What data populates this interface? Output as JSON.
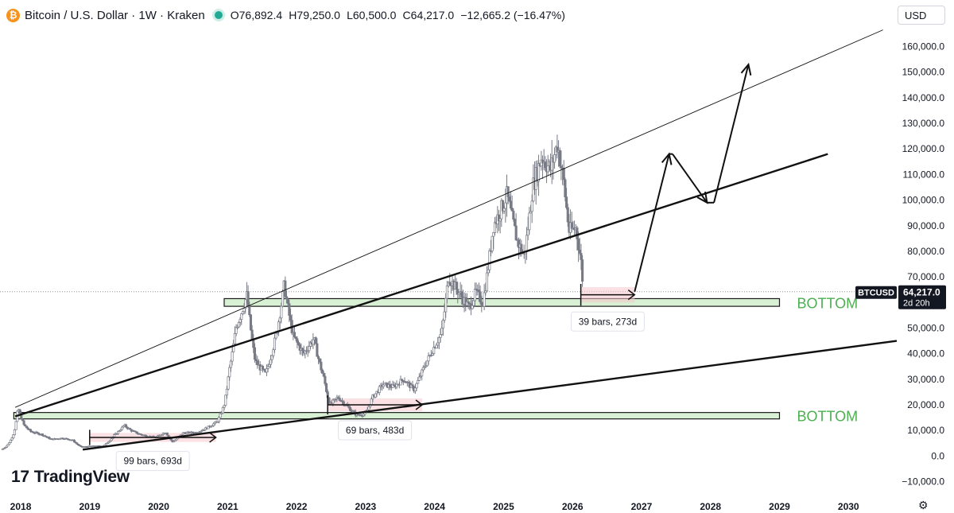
{
  "header": {
    "symbol_title": "Bitcoin / U.S. Dollar · 1W · Kraken",
    "coin_glyph": "₿",
    "open": "O76,892.4",
    "high": "H79,250.0",
    "low": "L60,500.0",
    "close": "C64,217.0",
    "change": "−12,665.2 (−16.47%)"
  },
  "currency_selector": "USD",
  "brand": "TradingView",
  "price_tag": {
    "ticker": "BTCUSD",
    "price": "64,217.0",
    "countdown": "2d 20h"
  },
  "colors": {
    "zone_fill": "#d8f0d4",
    "zone_text": "#4caf50",
    "range_fill": "#f8c8cc",
    "candle": "#787b86",
    "accent": "#131722"
  },
  "icons": {
    "coin": "bitcoin-icon",
    "status": "market-open-dot-icon",
    "settings": "gear-icon"
  },
  "chart_data": {
    "type": "candlestick",
    "x_axis": {
      "ticks": [
        "2018",
        "2019",
        "2020",
        "2021",
        "2022",
        "2023",
        "2024",
        "2025",
        "2026",
        "2027",
        "2028",
        "2029",
        "2030"
      ],
      "range": [
        2017.7,
        2030.7
      ]
    },
    "y_axis": {
      "ticks": [
        -10000,
        0,
        10000,
        20000,
        30000,
        40000,
        50000,
        60000,
        70000,
        80000,
        90000,
        100000,
        110000,
        120000,
        130000,
        140000,
        150000,
        160000
      ],
      "tick_labels": [
        "−10,000.0",
        "0.0",
        "10,000.0",
        "20,000.0",
        "30,000.0",
        "40,000.0",
        "50,000.0",
        "60,000.0",
        "70,000.0",
        "80,000.0",
        "90,000.0",
        "100,000.0",
        "110,000.0",
        "120,000.0",
        "130,000.0",
        "140,000.0",
        "150,000.0",
        "160,000.0"
      ],
      "range": [
        -14500,
        167000
      ]
    },
    "last_price": 64217,
    "price_path": [
      [
        2017.72,
        2500
      ],
      [
        2017.8,
        4000
      ],
      [
        2017.9,
        9000
      ],
      [
        2017.96,
        19000
      ],
      [
        2018.05,
        12000
      ],
      [
        2018.15,
        9500
      ],
      [
        2018.3,
        8500
      ],
      [
        2018.45,
        6500
      ],
      [
        2018.6,
        7000
      ],
      [
        2018.75,
        6300
      ],
      [
        2018.88,
        3500
      ],
      [
        2019.0,
        3800
      ],
      [
        2019.2,
        4000
      ],
      [
        2019.35,
        8000
      ],
      [
        2019.5,
        12000
      ],
      [
        2019.6,
        10000
      ],
      [
        2019.75,
        8300
      ],
      [
        2019.95,
        7200
      ],
      [
        2020.1,
        9500
      ],
      [
        2020.2,
        5500
      ],
      [
        2020.35,
        9000
      ],
      [
        2020.55,
        9200
      ],
      [
        2020.7,
        11000
      ],
      [
        2020.85,
        13500
      ],
      [
        2020.95,
        20000
      ],
      [
        2021.02,
        33000
      ],
      [
        2021.12,
        50000
      ],
      [
        2021.28,
        63000
      ],
      [
        2021.4,
        37000
      ],
      [
        2021.55,
        32000
      ],
      [
        2021.7,
        47000
      ],
      [
        2021.82,
        67000
      ],
      [
        2021.95,
        47000
      ],
      [
        2022.1,
        40000
      ],
      [
        2022.25,
        46000
      ],
      [
        2022.4,
        30000
      ],
      [
        2022.48,
        20000
      ],
      [
        2022.6,
        23000
      ],
      [
        2022.75,
        19000
      ],
      [
        2022.87,
        16000
      ],
      [
        2023.0,
        16500
      ],
      [
        2023.1,
        23000
      ],
      [
        2023.25,
        28000
      ],
      [
        2023.4,
        27000
      ],
      [
        2023.55,
        30000
      ],
      [
        2023.7,
        26000
      ],
      [
        2023.85,
        35000
      ],
      [
        2023.98,
        42000
      ],
      [
        2024.1,
        48000
      ],
      [
        2024.2,
        70000
      ],
      [
        2024.35,
        64000
      ],
      [
        2024.5,
        58000
      ],
      [
        2024.6,
        64000
      ],
      [
        2024.7,
        60000
      ],
      [
        2024.85,
        90000
      ],
      [
        2024.96,
        96000
      ],
      [
        2025.05,
        102000
      ],
      [
        2025.2,
        84000
      ],
      [
        2025.3,
        78000
      ],
      [
        2025.42,
        105000
      ],
      [
        2025.55,
        117000
      ],
      [
        2025.68,
        112000
      ],
      [
        2025.78,
        122000
      ],
      [
        2025.87,
        108000
      ],
      [
        2025.95,
        88000
      ],
      [
        2026.05,
        89000
      ],
      [
        2026.12,
        77000
      ],
      [
        2026.16,
        64217
      ]
    ],
    "zones": [
      {
        "label": "BOTTOM",
        "x_start": 2017.9,
        "x_end": 2029.0,
        "y_low": 14500,
        "y_high": 17000
      },
      {
        "label": "BOTTOM",
        "x_start": 2020.95,
        "x_end": 2029.0,
        "y_low": 58500,
        "y_high": 61500
      }
    ],
    "trendlines": [
      {
        "from": [
          2017.92,
          19000
        ],
        "to": [
          2030.5,
          166500
        ],
        "weight": "thin"
      },
      {
        "from": [
          2017.92,
          15500
        ],
        "to": [
          2029.7,
          118000
        ],
        "weight": "thick"
      },
      {
        "from": [
          2018.9,
          2500
        ],
        "to": [
          2030.7,
          45000
        ],
        "weight": "thick"
      }
    ],
    "date_ranges": [
      {
        "label": "99 bars, 693d",
        "x_start": 2019.0,
        "x_end": 2020.83,
        "y_low": 5500,
        "y_high": 9000
      },
      {
        "label": "69 bars, 483d",
        "x_start": 2022.45,
        "x_end": 2023.82,
        "y_low": 17500,
        "y_high": 22500
      },
      {
        "label": "39 bars, 273d",
        "x_start": 2026.12,
        "x_end": 2026.9,
        "y_low": 60000,
        "y_high": 66000
      }
    ],
    "projection_path": [
      [
        2026.9,
        64217
      ],
      [
        2027.4,
        118000
      ],
      [
        2027.45,
        118000
      ],
      [
        2027.95,
        99000
      ],
      [
        2028.05,
        99000
      ],
      [
        2028.55,
        153000
      ]
    ]
  }
}
